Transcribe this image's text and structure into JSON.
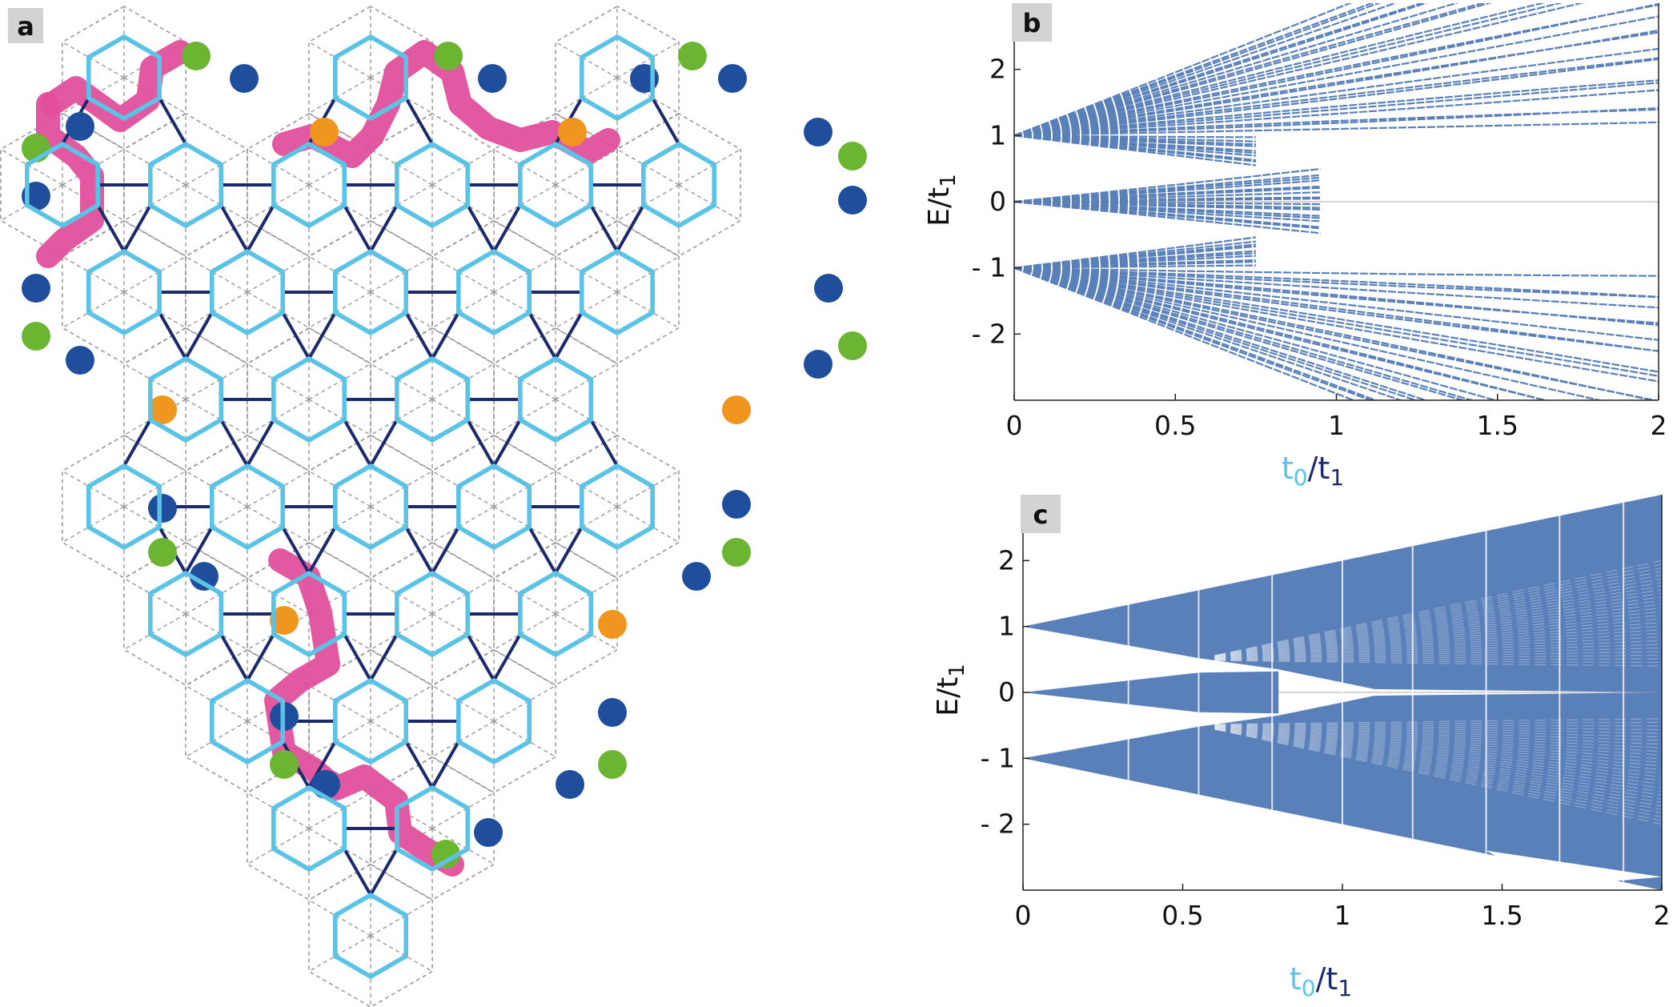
{
  "panels": {
    "a": {
      "label": "a"
    },
    "b": {
      "label": "b"
    },
    "c": {
      "label": "c"
    }
  },
  "colors": {
    "light_bond": "#5bc3e6",
    "dark_bond": "#1c2a6b",
    "grid": "#9a9a9a",
    "pink": "#e2509c",
    "blue_site": "#1f4e9c",
    "green_site": "#6bb533",
    "orange_site": "#f0951e",
    "band": "#5a80b9",
    "xlab_t0": "#5bc3e6",
    "xlab_t1": "#1c2a6b"
  },
  "chart_data": [
    {
      "panel": "b",
      "type": "line",
      "title": "",
      "xlabel": "t0/t1",
      "xlabel_parts": {
        "t": "t",
        "sub0": "0",
        "slash": "/",
        "t2": "t",
        "sub1": "1"
      },
      "ylabel": "E/t1",
      "ylabel_parts": {
        "main": "E/t",
        "sub": "1"
      },
      "xlim": [
        0,
        2
      ],
      "ylim": [
        -3,
        3
      ],
      "xticks": [
        0,
        0.5,
        1,
        1.5,
        2
      ],
      "xtick_labels": [
        "0",
        "0.5",
        "1",
        "1.5",
        "2"
      ],
      "yticks": [
        2,
        1,
        0,
        -1,
        -2
      ],
      "ytick_labels": [
        "2",
        "1",
        "0",
        "- 1",
        "- 2"
      ],
      "grid": false,
      "series_description": "energy levels E/t1 vs t0/t1; families fan out from E=1, E=0 and E=-1 at t0/t1=0",
      "fans": [
        {
          "origin": 1,
          "slope_min": 0.1,
          "slope_max": 1.9,
          "count": 26
        },
        {
          "origin": 1,
          "slope_min": -0.6,
          "slope_max": -0.05,
          "count": 10,
          "end": 0.75
        },
        {
          "origin": 0,
          "slope_min": -0.5,
          "slope_max": 0.5,
          "count": 18,
          "end": 0.95
        },
        {
          "origin": -1,
          "slope_min": -1.9,
          "slope_max": -0.1,
          "count": 26
        },
        {
          "origin": -1,
          "slope_min": 0.05,
          "slope_max": 0.6,
          "count": 10,
          "end": 0.75
        }
      ]
    },
    {
      "panel": "c",
      "type": "area",
      "title": "",
      "xlabel": "t0/t1",
      "xlabel_parts": {
        "t": "t",
        "sub0": "0",
        "slash": "/",
        "t2": "t",
        "sub1": "1"
      },
      "ylabel": "E/t1",
      "ylabel_parts": {
        "main": "E/t",
        "sub": "1"
      },
      "xlim": [
        0,
        2
      ],
      "ylim": [
        -3,
        3
      ],
      "xticks": [
        0,
        0.5,
        1,
        1.5,
        2
      ],
      "xtick_labels": [
        "0",
        "0.5",
        "1",
        "1.5",
        "2"
      ],
      "yticks": [
        2,
        1,
        0,
        -1,
        -2
      ],
      "ytick_labels": [
        "2",
        "1",
        "0",
        "- 1",
        "- 2"
      ],
      "grid": false,
      "series_description": "dense bands of energy levels; upper band bounded by E=1+t0 and E=1-0.88 t0, lower band mirrored, central band within ±0.55 t0 up to t0/t1≈0.55",
      "bands": [
        {
          "name": "upper",
          "top": [
            [
              0,
              1
            ],
            [
              2,
              3
            ]
          ],
          "bottom": [
            [
              0,
              1
            ],
            [
              0.55,
              0.52
            ],
            [
              0.8,
              0.35
            ],
            [
              1.1,
              0.05
            ],
            [
              2,
              0
            ]
          ]
        },
        {
          "name": "lower",
          "top": [
            [
              0,
              -1
            ],
            [
              0.55,
              -0.52
            ],
            [
              0.8,
              -0.35
            ],
            [
              1.1,
              -0.05
            ],
            [
              2,
              0
            ]
          ],
          "bottom": [
            [
              0,
              -1
            ],
            [
              2,
              -3
            ]
          ]
        },
        {
          "name": "central",
          "top": [
            [
              0,
              0
            ],
            [
              0.55,
              0.3
            ],
            [
              0.8,
              0.32
            ]
          ],
          "bottom": [
            [
              0,
              0
            ],
            [
              0.55,
              -0.3
            ],
            [
              0.8,
              -0.32
            ]
          ]
        }
      ],
      "gap_wedges": [
        {
          "name": "upper-right",
          "pts": [
            [
              1.25,
              2.95
            ],
            [
              1.7,
              2.95
            ],
            [
              1.5,
              2.5
            ]
          ]
        },
        {
          "name": "lower-right",
          "pts": [
            [
              1.45,
              -2.4
            ],
            [
              2.0,
              -2.8
            ],
            [
              1.65,
              -2.95
            ]
          ]
        }
      ]
    }
  ]
}
